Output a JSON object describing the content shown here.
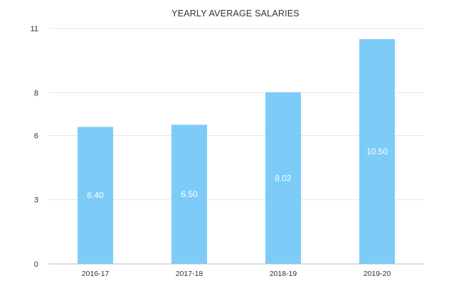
{
  "chart_data": {
    "type": "bar",
    "title": "YEARLY AVERAGE SALARIES",
    "xlabel": "",
    "ylabel": "",
    "categories": [
      "2016-17",
      "2017-18",
      "2018-19",
      "2019-20"
    ],
    "values": [
      6.4,
      6.5,
      8.02,
      10.5
    ],
    "data_labels": [
      "6.40",
      "6.50",
      "8.02",
      "10.50"
    ],
    "y_ticks": [
      "0",
      "3",
      "6",
      "8",
      "11"
    ],
    "ylim": [
      0,
      11
    ],
    "grid": true,
    "legend": "none",
    "bar_color": "#7ccbf9"
  }
}
